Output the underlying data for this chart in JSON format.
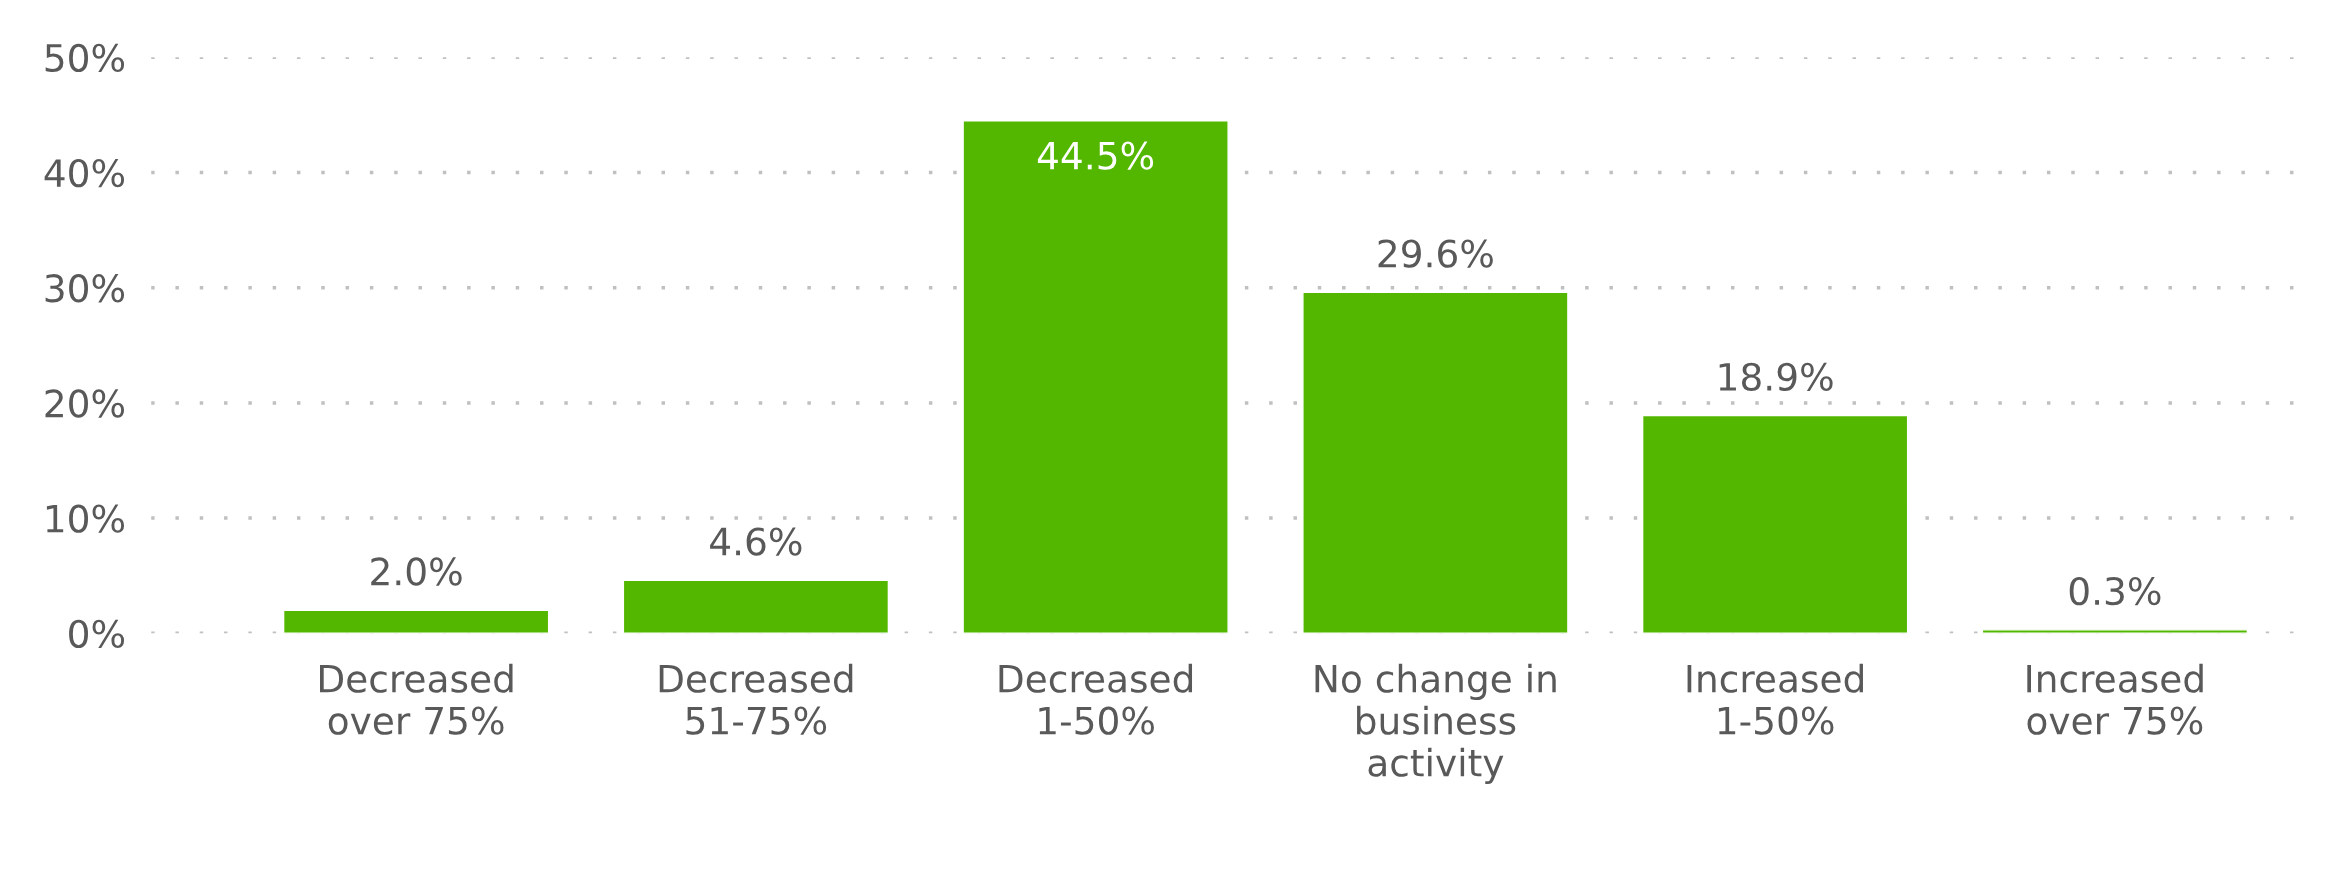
{
  "chart_data": {
    "type": "bar",
    "categories": [
      "Decreased\nover 75%",
      "Decreased\n51-75%",
      "Decreased\n1-50%",
      "No change in\nbusiness\nactivity",
      "Increased\n1-50%",
      "Increased\nover 75%"
    ],
    "values": [
      2.0,
      4.6,
      44.5,
      29.6,
      18.9,
      0.3
    ],
    "value_labels": [
      "2.0%",
      "4.6%",
      "44.5%",
      "29.6%",
      "18.9%",
      "0.3%"
    ],
    "color": "#53b700",
    "ylim": [
      0,
      50
    ],
    "yticks": [
      {
        "value": 0,
        "label": "0%"
      },
      {
        "value": 10,
        "label": "10%"
      },
      {
        "value": 20,
        "label": "20%"
      },
      {
        "value": 30,
        "label": "30%"
      },
      {
        "value": 40,
        "label": "40%"
      },
      {
        "value": 50,
        "label": "50%"
      }
    ],
    "grid": "y",
    "legend": false
  }
}
